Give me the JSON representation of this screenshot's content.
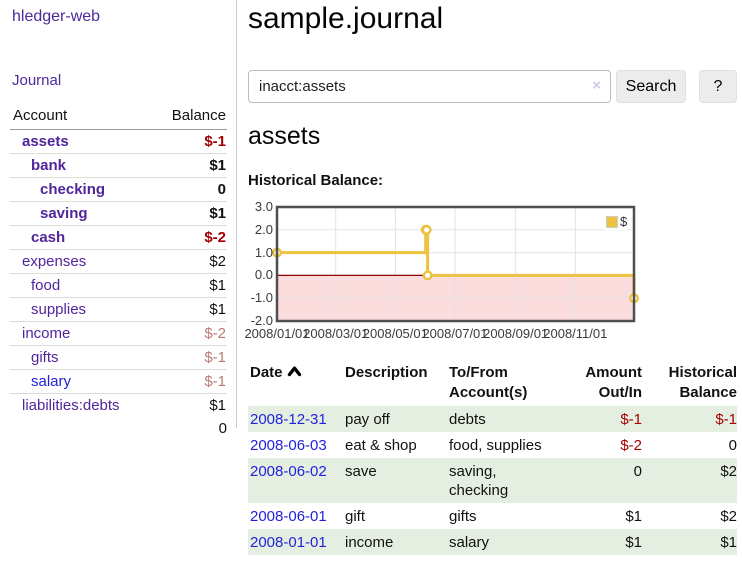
{
  "app": {
    "brand": "hledger-web",
    "nav_journal": "Journal"
  },
  "sidebar": {
    "accounts_table": {
      "col_account": "Account",
      "col_balance": "Balance",
      "rows": [
        {
          "account": "assets",
          "balance": "$-1",
          "depth": 1,
          "bold": true
        },
        {
          "account": "bank",
          "balance": "$1",
          "depth": 2,
          "bold": true
        },
        {
          "account": "checking",
          "balance": "0",
          "depth": 3,
          "bold": true
        },
        {
          "account": "saving",
          "balance": "$1",
          "depth": 3,
          "bold": true
        },
        {
          "account": "cash",
          "balance": "$-2",
          "depth": 2,
          "bold": true
        },
        {
          "account": "expenses",
          "balance": "$2",
          "depth": 1,
          "bold": false
        },
        {
          "account": "food",
          "balance": "$1",
          "depth": 2,
          "bold": false
        },
        {
          "account": "supplies",
          "balance": "$1",
          "depth": 2,
          "bold": false
        },
        {
          "account": "income",
          "balance": "$-2",
          "depth": 1,
          "bold": false
        },
        {
          "account": "gifts",
          "balance": "$-1",
          "depth": 2,
          "bold": false
        },
        {
          "account": "salary",
          "balance": "$-1",
          "depth": 2,
          "bold": false,
          "link_color": "blue"
        },
        {
          "account": "liabilities:debts",
          "balance": "$1",
          "depth": 1,
          "bold": false
        }
      ],
      "total": "0"
    }
  },
  "main": {
    "page_title": "sample.journal",
    "search": {
      "value": "inacct:assets",
      "clear": "×",
      "search_button": "Search",
      "help_button": "?"
    },
    "section_title": "assets",
    "chart_title": "Historical Balance:"
  },
  "chart_data": {
    "type": "line",
    "step": true,
    "title": "Historical Balance",
    "series": [
      {
        "name": "$",
        "color": "#edc240",
        "points": [
          [
            "2008-01-01",
            1
          ],
          [
            "2008-06-01",
            2
          ],
          [
            "2008-06-02",
            2
          ],
          [
            "2008-06-03",
            0
          ],
          [
            "2008-12-31",
            -1
          ]
        ]
      }
    ],
    "x_range": [
      "2008-01-01",
      "2008-12-31"
    ],
    "x_ticks": [
      "2008/01/01",
      "2008/03/01",
      "2008/05/01",
      "2008/07/01",
      "2008/09/01",
      "2008/11/01"
    ],
    "y_range": [
      -2,
      3
    ],
    "y_ticks": [
      "3.0",
      "2.0",
      "1.0",
      "0.0",
      "-1.0",
      "-2.0"
    ],
    "legend": {
      "label": "$",
      "position": "top-right"
    },
    "grid": true,
    "negative_region_color": "#fbdddd",
    "zero_line_color": "#8b0000",
    "border_color": "#4f4f4f"
  },
  "register": {
    "headers": {
      "date": "Date",
      "description": "Description",
      "accounts": "To/From Account(s)",
      "amount": "Amount Out/In",
      "balance": "Historical Balance"
    },
    "rows": [
      {
        "date": "2008-12-31",
        "description": "pay off",
        "accounts": "debts",
        "amount": "$-1",
        "balance": "$-1"
      },
      {
        "date": "2008-06-03",
        "description": "eat & shop",
        "accounts": "food, supplies",
        "amount": "$-2",
        "balance": "0"
      },
      {
        "date": "2008-06-02",
        "description": "save",
        "accounts": "saving, checking",
        "amount": "0",
        "balance": "$2"
      },
      {
        "date": "2008-06-01",
        "description": "gift",
        "accounts": "gifts",
        "amount": "$1",
        "balance": "$2"
      },
      {
        "date": "2008-01-01",
        "description": "income",
        "accounts": "salary",
        "amount": "$1",
        "balance": "$1"
      }
    ]
  },
  "colors": {
    "link_purple": "#50259c",
    "link_blue": "#2222dd",
    "negative_strong": "#a40000",
    "negative_muted": "#b97878",
    "row_green": "#e4efe1",
    "series_gold": "#edc240"
  }
}
